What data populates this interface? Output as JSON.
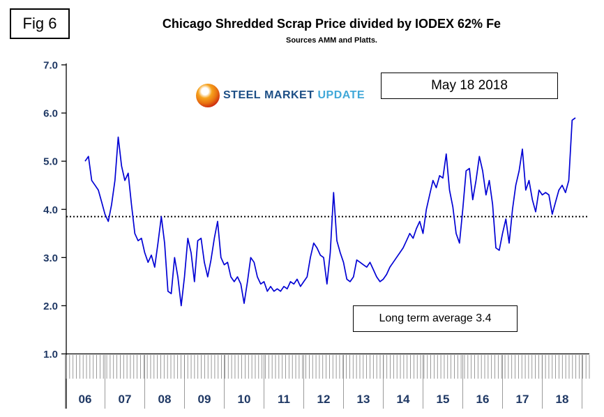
{
  "page": {
    "fig_label": "Fig 6",
    "title": "Chicago Shredded Scrap Price divided by IODEX 62% Fe",
    "subtitle": "Sources AMM and Platts.",
    "date_box": "May 18 2018",
    "average_box": "Long term average 3.4",
    "logo": {
      "word1": "STEEL",
      "word2": "MARKET",
      "word3": "UPDATE"
    }
  },
  "colors": {
    "line": "#0000d4",
    "axis_label": "#1F3864",
    "dotted": "#000000",
    "tick": "#808080",
    "axis": "#000000"
  },
  "chart_data": {
    "type": "line",
    "title": "Chicago Shredded Scrap Price divided by IODEX 62% Fe",
    "subtitle": "Sources AMM and Platts.",
    "xlabel": "",
    "ylabel": "",
    "ylim": [
      1.0,
      7.0
    ],
    "grid": "off",
    "legend": "none",
    "frequency": "monthly",
    "x_range": "2006 to May 2018",
    "x_tick_labels": [
      "06",
      "07",
      "08",
      "09",
      "10",
      "11",
      "12",
      "13",
      "14",
      "15",
      "16",
      "17",
      "18"
    ],
    "y_tick_labels": [
      "7.0",
      "6.0",
      "5.0",
      "4.0",
      "3.0",
      "2.0",
      "1.0"
    ],
    "dotted_line_y": 3.85,
    "long_term_average": 3.4,
    "annotations": [
      "May 18 2018",
      "Long term average 3.4"
    ],
    "values": [
      5.0,
      5.1,
      4.6,
      4.5,
      4.4,
      4.15,
      3.9,
      3.75,
      4.1,
      4.6,
      5.5,
      4.9,
      4.6,
      4.75,
      4.1,
      3.5,
      3.35,
      3.4,
      3.1,
      2.9,
      3.05,
      2.8,
      3.3,
      3.85,
      3.3,
      2.3,
      2.25,
      3.0,
      2.6,
      2.0,
      2.6,
      3.4,
      3.1,
      2.5,
      3.35,
      3.4,
      2.9,
      2.6,
      2.95,
      3.4,
      3.75,
      3.0,
      2.85,
      2.9,
      2.6,
      2.5,
      2.6,
      2.45,
      2.05,
      2.5,
      3.0,
      2.9,
      2.6,
      2.45,
      2.5,
      2.3,
      2.4,
      2.3,
      2.35,
      2.3,
      2.4,
      2.35,
      2.5,
      2.45,
      2.55,
      2.4,
      2.5,
      2.6,
      3.0,
      3.3,
      3.2,
      3.05,
      3.0,
      2.45,
      3.1,
      4.35,
      3.35,
      3.1,
      2.9,
      2.55,
      2.5,
      2.6,
      2.95,
      2.9,
      2.85,
      2.8,
      2.9,
      2.75,
      2.6,
      2.5,
      2.55,
      2.65,
      2.8,
      2.9,
      3.0,
      3.1,
      3.2,
      3.35,
      3.5,
      3.4,
      3.6,
      3.75,
      3.5,
      4.0,
      4.3,
      4.6,
      4.45,
      4.7,
      4.65,
      5.15,
      4.4,
      4.05,
      3.5,
      3.3,
      4.0,
      4.8,
      4.85,
      4.2,
      4.6,
      5.1,
      4.8,
      4.3,
      4.6,
      4.1,
      3.2,
      3.15,
      3.5,
      3.8,
      3.3,
      4.0,
      4.5,
      4.8,
      5.25,
      4.4,
      4.6,
      4.2,
      3.95,
      4.4,
      4.3,
      4.35,
      4.3,
      3.9,
      4.15,
      4.4,
      4.5,
      4.35,
      4.6,
      5.85,
      5.9
    ]
  }
}
